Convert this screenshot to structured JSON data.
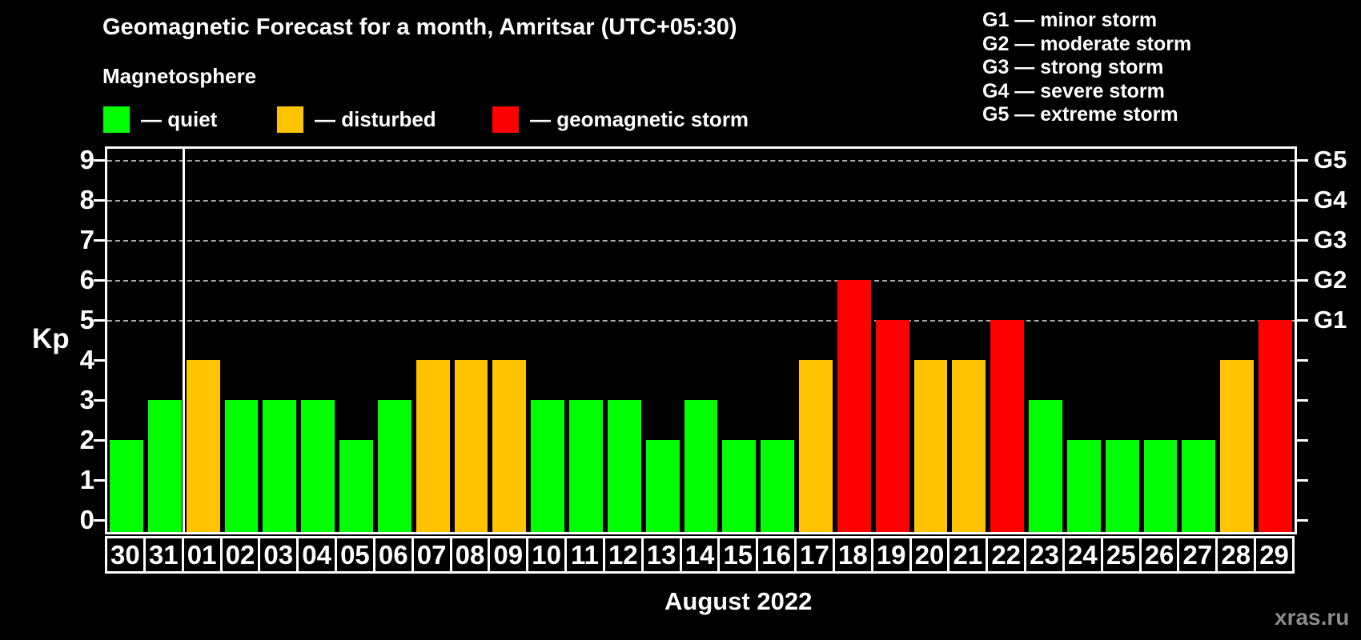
{
  "page": {
    "title": "Geomagnetic Forecast for a month, Amritsar (UTC+05:30)",
    "subtitle": "Magnetosphere",
    "kp_axis_label": "Kp",
    "month_label": "August 2022",
    "watermark": "xras.ru"
  },
  "legend": {
    "items": [
      {
        "name": "quiet",
        "label": "— quiet",
        "color": "#00ff00"
      },
      {
        "name": "disturbed",
        "label": "— disturbed",
        "color": "#ffc300"
      },
      {
        "name": "storm",
        "label": "— geomagnetic storm",
        "color": "#ff0000"
      }
    ]
  },
  "g_scale_legend": [
    "G1 — minor storm",
    "G2 — moderate storm",
    "G3 — strong storm",
    "G4 — severe storm",
    "G5 — extreme storm"
  ],
  "chart_data": {
    "type": "bar",
    "title": "Geomagnetic Forecast for a month, Amritsar (UTC+05:30)",
    "xlabel": "August 2022",
    "ylabel": "Kp",
    "ylim": [
      0,
      9
    ],
    "yticks": [
      0,
      1,
      2,
      3,
      4,
      5,
      6,
      7,
      8,
      9
    ],
    "gridlines": [
      5,
      6,
      7,
      8,
      9
    ],
    "legend_position": "top-left",
    "right_axis": [
      {
        "value": 5,
        "label": "G1"
      },
      {
        "value": 6,
        "label": "G2"
      },
      {
        "value": 7,
        "label": "G3"
      },
      {
        "value": 8,
        "label": "G4"
      },
      {
        "value": 9,
        "label": "G5"
      }
    ],
    "categories": [
      "30",
      "31",
      "01",
      "02",
      "03",
      "04",
      "05",
      "06",
      "07",
      "08",
      "09",
      "10",
      "11",
      "12",
      "13",
      "14",
      "15",
      "16",
      "17",
      "18",
      "19",
      "20",
      "21",
      "22",
      "23",
      "24",
      "25",
      "26",
      "27",
      "28",
      "29"
    ],
    "values": [
      2,
      3,
      4,
      3,
      3,
      3,
      2,
      3,
      4,
      4,
      4,
      3,
      3,
      3,
      2,
      3,
      2,
      2,
      4,
      6,
      5,
      4,
      4,
      5,
      3,
      2,
      2,
      2,
      2,
      4,
      5
    ],
    "statuses": [
      "quiet",
      "quiet",
      "disturbed",
      "quiet",
      "quiet",
      "quiet",
      "quiet",
      "quiet",
      "disturbed",
      "disturbed",
      "disturbed",
      "quiet",
      "quiet",
      "quiet",
      "quiet",
      "quiet",
      "quiet",
      "quiet",
      "disturbed",
      "storm",
      "storm",
      "disturbed",
      "disturbed",
      "storm",
      "quiet",
      "quiet",
      "quiet",
      "quiet",
      "quiet",
      "disturbed",
      "storm"
    ],
    "month_separator_after_index": 1,
    "colors": {
      "quiet": "#00ff00",
      "disturbed": "#ffc300",
      "storm": "#ff0000"
    }
  }
}
